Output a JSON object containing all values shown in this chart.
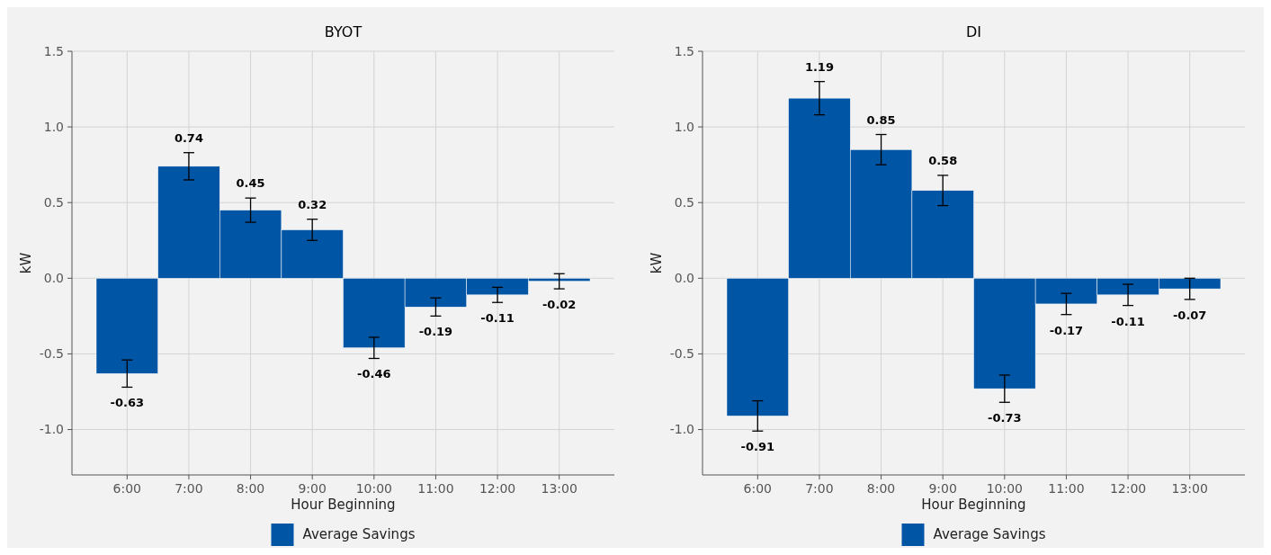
{
  "chart_data": [
    {
      "type": "bar",
      "title": "BYOT",
      "xlabel": "Hour Beginning",
      "ylabel": "kW",
      "categories": [
        "6:00",
        "7:00",
        "8:00",
        "9:00",
        "10:00",
        "11:00",
        "12:00",
        "13:00"
      ],
      "series": [
        {
          "name": "Average Savings",
          "color": "#0055a4",
          "values": [
            -0.63,
            0.74,
            0.45,
            0.32,
            -0.46,
            -0.19,
            -0.11,
            -0.02
          ],
          "errors": [
            0.09,
            0.09,
            0.08,
            0.07,
            0.07,
            0.06,
            0.05,
            0.05
          ]
        }
      ],
      "ylim": [
        -1.3,
        1.5
      ],
      "yticks": [
        {
          "value": -1,
          "label": "-1.0"
        },
        -0.5,
        {
          "value": 0,
          "label": "0.0"
        },
        0.5,
        {
          "value": 1,
          "label": "1.0"
        },
        1.5
      ],
      "grid": true,
      "legend": "bottom",
      "data_labels": true
    },
    {
      "type": "bar",
      "title": "DI",
      "xlabel": "Hour Beginning",
      "ylabel": "kW",
      "categories": [
        "6:00",
        "7:00",
        "8:00",
        "9:00",
        "10:00",
        "11:00",
        "12:00",
        "13:00"
      ],
      "series": [
        {
          "name": "Average Savings",
          "color": "#0055a4",
          "values": [
            -0.91,
            1.19,
            0.85,
            0.58,
            -0.73,
            -0.17,
            -0.11,
            -0.07
          ],
          "errors": [
            0.1,
            0.11,
            0.1,
            0.1,
            0.09,
            0.07,
            0.07,
            0.07
          ]
        }
      ],
      "ylim": [
        -1.3,
        1.5
      ],
      "yticks": [
        {
          "value": -1,
          "label": "-1.0"
        },
        -0.5,
        {
          "value": 0,
          "label": "0.0"
        },
        0.5,
        {
          "value": 1,
          "label": "1.0"
        },
        1.5
      ],
      "grid": true,
      "legend": "bottom",
      "data_labels": true
    }
  ]
}
